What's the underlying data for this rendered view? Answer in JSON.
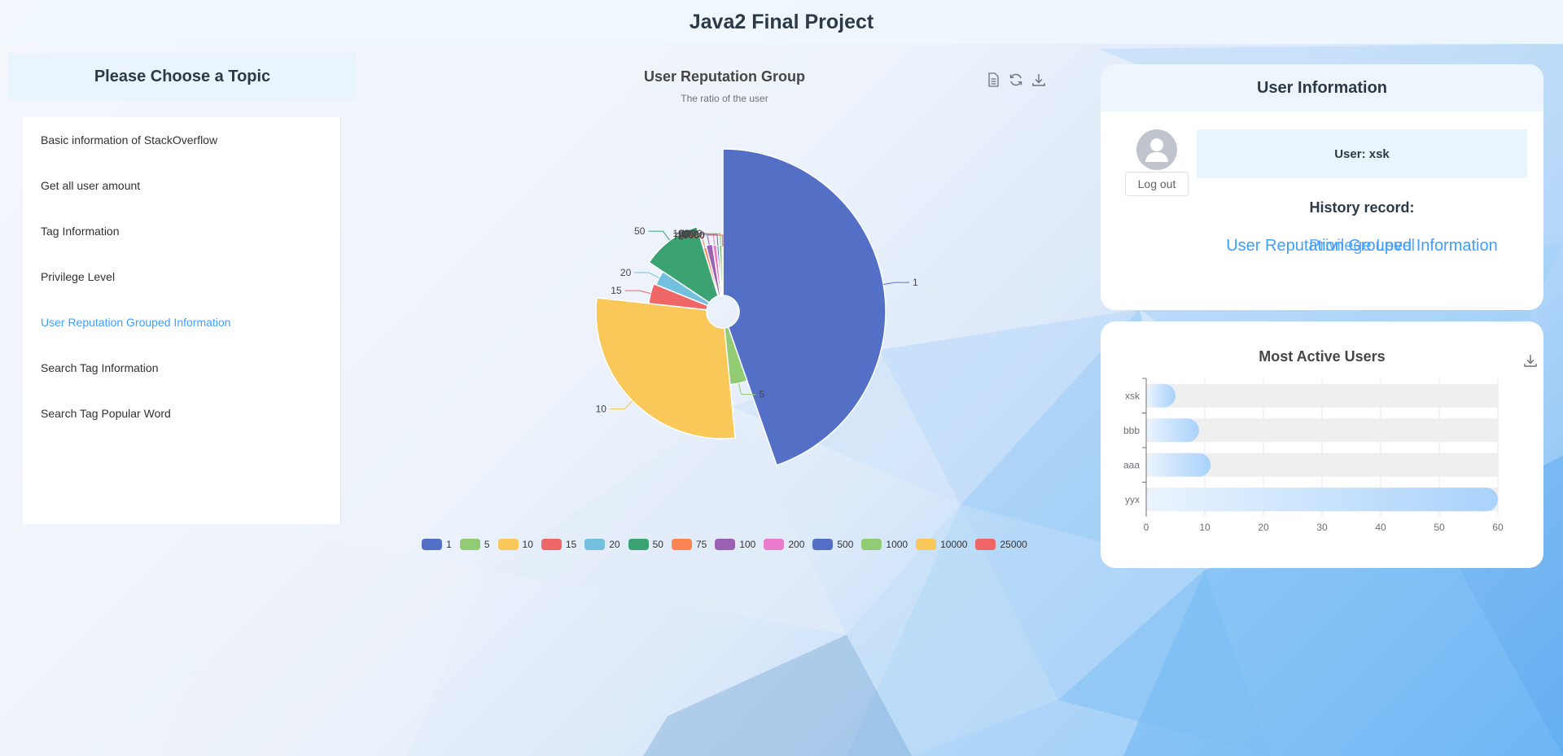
{
  "header": {
    "title": "Java2 Final Project"
  },
  "sidebar": {
    "title": "Please Choose a Topic",
    "items": [
      {
        "label": "Basic information of StackOverflow"
      },
      {
        "label": "Get all user amount"
      },
      {
        "label": "Tag Information"
      },
      {
        "label": "Privilege Level"
      },
      {
        "label": "User Reputation Grouped Information",
        "active": true
      },
      {
        "label": "Search Tag Information"
      },
      {
        "label": "Search Tag Popular Word"
      }
    ]
  },
  "toolbox": {
    "icons": [
      "data-view-icon",
      "restore-icon",
      "download-icon"
    ]
  },
  "chart_data": [
    {
      "type": "pie",
      "title": "User Reputation Group",
      "subtitle": "The ratio of the user",
      "rose": "radius",
      "legend_position": "bottom",
      "slices": [
        {
          "name": "1",
          "value": 41,
          "color": "#5470c6"
        },
        {
          "name": "5",
          "value": 3.5,
          "color": "#91cc75"
        },
        {
          "name": "10",
          "value": 26,
          "color": "#fac858"
        },
        {
          "name": "15",
          "value": 4,
          "color": "#ee6666"
        },
        {
          "name": "20",
          "value": 3,
          "color": "#73c0de"
        },
        {
          "name": "50",
          "value": 10,
          "color": "#3ba272"
        },
        {
          "name": "75",
          "value": 0.7,
          "color": "#fc8452"
        },
        {
          "name": "100",
          "value": 1.4,
          "color": "#9a60b4"
        },
        {
          "name": "200",
          "value": 0.9,
          "color": "#ea7ccc"
        },
        {
          "name": "500",
          "value": 0.5,
          "color": "#5470c6"
        },
        {
          "name": "1000",
          "value": 0.7,
          "color": "#91cc75"
        },
        {
          "name": "10000",
          "value": 0.1,
          "color": "#fac858"
        },
        {
          "name": "25000",
          "value": 0.05,
          "color": "#ee6666"
        }
      ]
    },
    {
      "type": "bar",
      "orientation": "horizontal",
      "title": "Most Active Users",
      "categories": [
        "xsk",
        "bbb",
        "aaa",
        "yyx"
      ],
      "values": [
        5,
        9,
        11,
        60
      ],
      "xlim": [
        0,
        60
      ],
      "xticks": [
        0,
        10,
        20,
        30,
        40,
        50,
        60
      ],
      "grid": true,
      "show_background": true,
      "bar_gradient": [
        "#eaf4ff",
        "#a9d2fb"
      ]
    }
  ],
  "user_card": {
    "title": "User Information",
    "username": "User: xsk",
    "logout_label": "Log out",
    "history_title": "History record:",
    "history": [
      "User Reputation Grouped Information",
      "Privilege Level"
    ]
  },
  "active_card": {
    "download_icon": "download-icon"
  }
}
